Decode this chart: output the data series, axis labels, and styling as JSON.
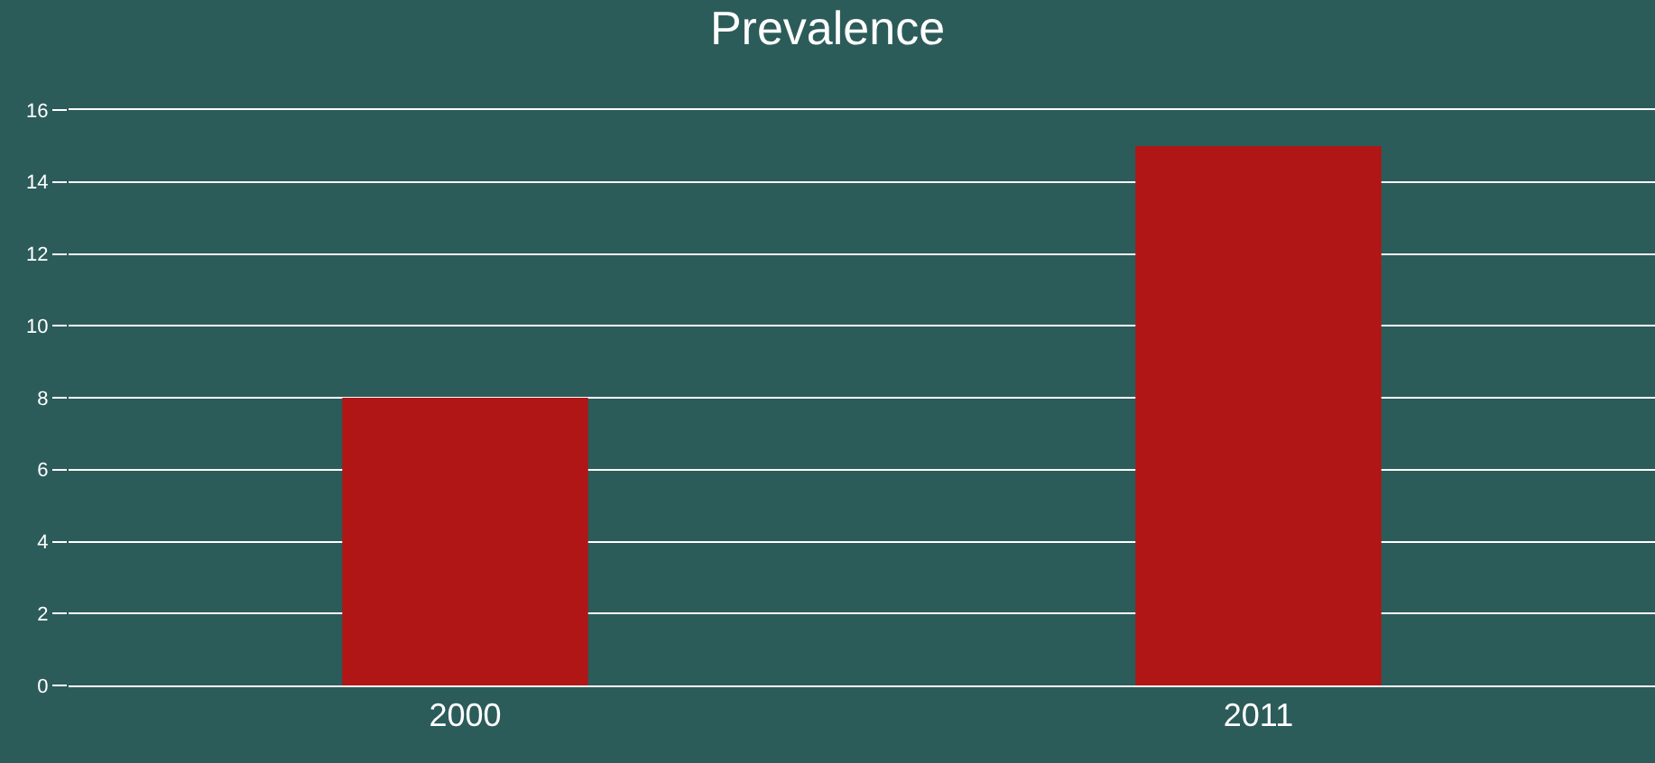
{
  "chart_data": {
    "type": "bar",
    "title": "Prevalence",
    "categories": [
      "2000",
      "2011"
    ],
    "values": [
      8,
      15
    ],
    "color": "#b01616",
    "ylim": [
      0,
      16
    ],
    "yticks": [
      0,
      2,
      4,
      6,
      8,
      10,
      12,
      14,
      16
    ],
    "grid": "y"
  }
}
